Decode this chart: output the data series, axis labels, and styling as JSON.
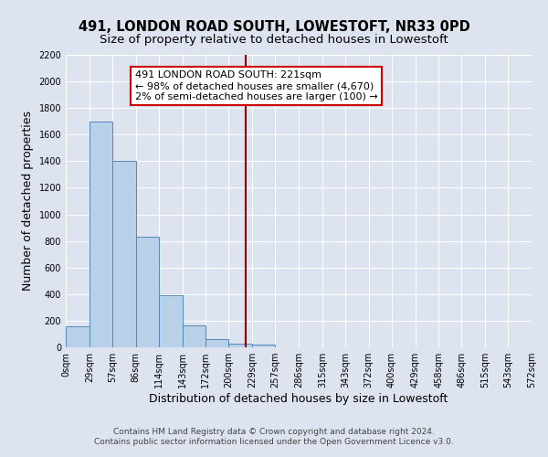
{
  "title": "491, LONDON ROAD SOUTH, LOWESTOFT, NR33 0PD",
  "subtitle": "Size of property relative to detached houses in Lowestoft",
  "xlabel": "Distribution of detached houses by size in Lowestoft",
  "ylabel": "Number of detached properties",
  "bin_edges": [
    0,
    29,
    57,
    86,
    114,
    143,
    172,
    200,
    229,
    257,
    286,
    315,
    343,
    372,
    400,
    429,
    458,
    486,
    515,
    543,
    572
  ],
  "bar_heights": [
    160,
    1700,
    1400,
    830,
    390,
    165,
    65,
    30,
    20,
    0,
    0,
    0,
    0,
    0,
    0,
    0,
    0,
    0,
    0,
    0
  ],
  "bar_color": "#b8d0e8",
  "bar_edge_color": "#5588bb",
  "property_line_x": 221,
  "property_line_color": "#8b0000",
  "annotation_box_text": "491 LONDON ROAD SOUTH: 221sqm\n← 98% of detached houses are smaller (4,670)\n2% of semi-detached houses are larger (100) →",
  "annotation_box_edge_color": "#cc0000",
  "ylim": [
    0,
    2200
  ],
  "yticks": [
    0,
    200,
    400,
    600,
    800,
    1000,
    1200,
    1400,
    1600,
    1800,
    2000,
    2200
  ],
  "tick_labels": [
    "0sqm",
    "29sqm",
    "57sqm",
    "86sqm",
    "114sqm",
    "143sqm",
    "172sqm",
    "200sqm",
    "229sqm",
    "257sqm",
    "286sqm",
    "315sqm",
    "343sqm",
    "372sqm",
    "400sqm",
    "429sqm",
    "458sqm",
    "486sqm",
    "515sqm",
    "543sqm",
    "572sqm"
  ],
  "footer_line1": "Contains HM Land Registry data © Crown copyright and database right 2024.",
  "footer_line2": "Contains public sector information licensed under the Open Government Licence v3.0.",
  "background_color": "#dde3ef",
  "plot_bg_color": "#dde3ef",
  "grid_color": "#ffffff",
  "title_fontsize": 10.5,
  "subtitle_fontsize": 9.5,
  "axis_label_fontsize": 9,
  "tick_fontsize": 7,
  "annotation_fontsize": 8,
  "footer_fontsize": 6.5
}
